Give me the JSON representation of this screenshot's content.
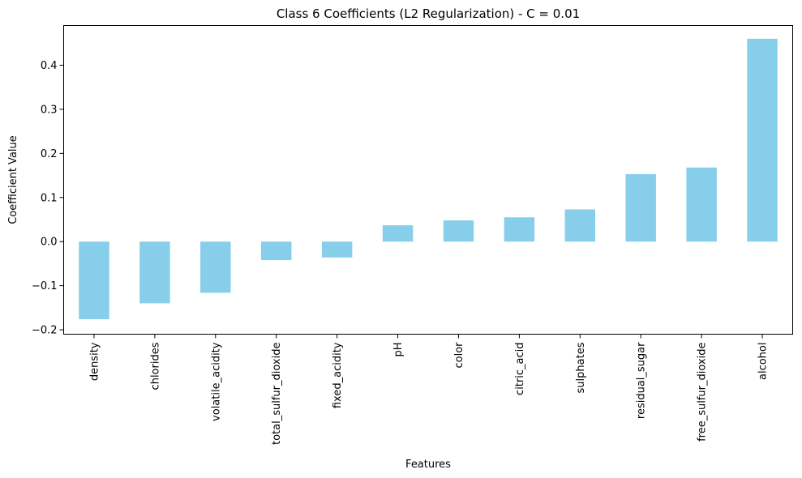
{
  "chart_data": {
    "type": "bar",
    "title": "Class 6 Coefficients (L2 Regularization) - C = 0.01",
    "xlabel": "Features",
    "ylabel": "Coefficient Value",
    "categories": [
      "density",
      "chlorides",
      "volatile_acidity",
      "total_sulfur_dioxide",
      "fixed_acidity",
      "pH",
      "color",
      "citric_acid",
      "sulphates",
      "residual_sugar",
      "free_sulfur_dioxide",
      "alcohol"
    ],
    "values": [
      -0.176,
      -0.14,
      -0.116,
      -0.042,
      -0.036,
      0.037,
      0.048,
      0.055,
      0.073,
      0.153,
      0.168,
      0.46
    ],
    "ylim": [
      -0.21,
      0.49
    ],
    "yticks": [
      -0.2,
      -0.1,
      0.0,
      0.1,
      0.2,
      0.3,
      0.4
    ],
    "ytick_labels": [
      "−0.2",
      "−0.1",
      "0.0",
      "0.1",
      "0.2",
      "0.3",
      "0.4"
    ],
    "bar_color": "#87ceeb",
    "grid": false,
    "legend": "none"
  }
}
